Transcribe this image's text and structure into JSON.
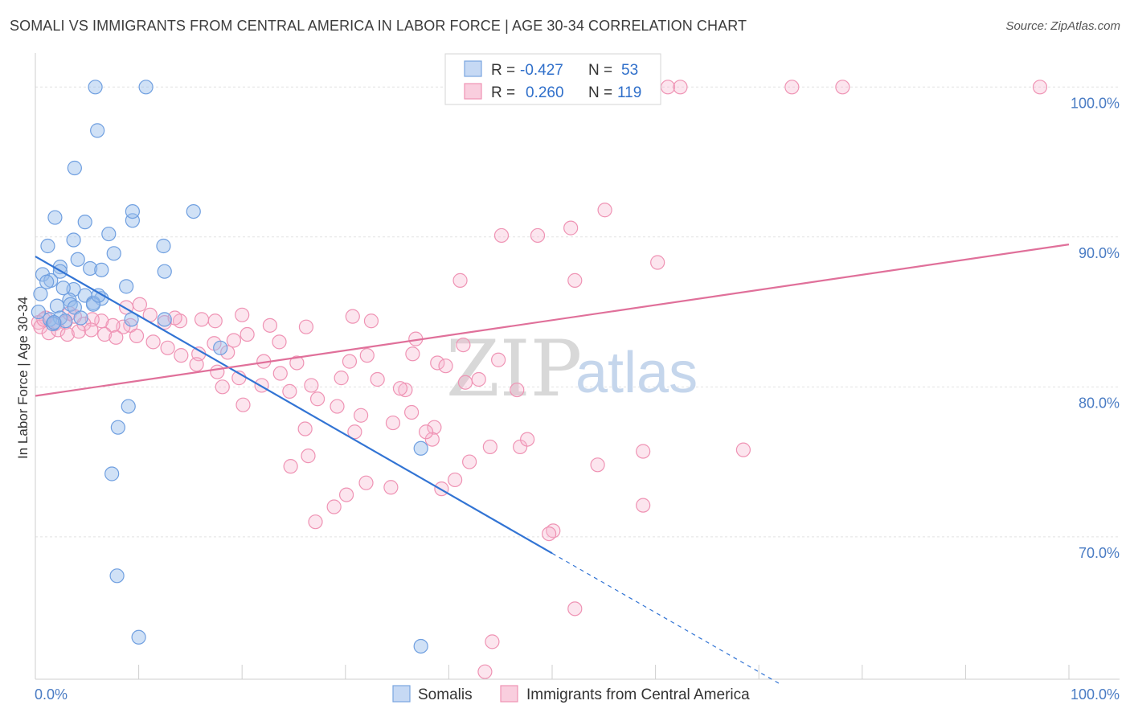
{
  "title": "SOMALI VS IMMIGRANTS FROM CENTRAL AMERICA IN LABOR FORCE | AGE 30-34 CORRELATION CHART",
  "source": "Source: ZipAtlas.com",
  "watermark": {
    "zip": "ZIP",
    "atlas": "atlas"
  },
  "colors": {
    "blue": "#6f9fe0",
    "blue_line": "#3274d4",
    "pink": "#ef8fb0",
    "pink_line": "#e0709a",
    "axis_text": "#4a7cc4"
  },
  "legend": {
    "r_label": "R =",
    "n_label": "N =",
    "rows": [
      {
        "r": "-0.427",
        "n": "53",
        "color": "blue"
      },
      {
        "r": "0.260",
        "n": "119",
        "color": "pink"
      }
    ]
  },
  "bottom_legend": [
    "Somalis",
    "Immigrants from Central America"
  ],
  "chart_data": {
    "type": "scatter",
    "title": "SOMALI VS IMMIGRANTS FROM CENTRAL AMERICA IN LABOR FORCE | AGE 30-34 CORRELATION CHART",
    "xlabel": "",
    "ylabel": "In Labor Force | Age 30-34",
    "xlim": [
      0,
      100
    ],
    "ylim": [
      60.5,
      102
    ],
    "x_tick_labels": [
      "0.0%",
      "100.0%"
    ],
    "y_ticks": [
      70,
      80,
      90,
      100
    ],
    "y_tick_labels": [
      "70.0%",
      "80.0%",
      "90.0%",
      "100.0%"
    ],
    "grid": true,
    "legend_position": "top-center",
    "series": [
      {
        "name": "Somalis",
        "color": "blue",
        "r": -0.427,
        "n": 53,
        "trend": {
          "x0": 0,
          "y0": 88.7,
          "x1": 50,
          "y1": 68.9,
          "dashed_to_x": 72,
          "dashed_to_y": 60.2
        },
        "points": [
          [
            5.8,
            100
          ],
          [
            10.7,
            100
          ],
          [
            6.0,
            97.1
          ],
          [
            3.8,
            94.6
          ],
          [
            1.9,
            91.3
          ],
          [
            4.8,
            91.0
          ],
          [
            9.4,
            91.1
          ],
          [
            9.4,
            91.7
          ],
          [
            15.3,
            91.7
          ],
          [
            7.1,
            90.2
          ],
          [
            3.7,
            89.8
          ],
          [
            1.2,
            89.4
          ],
          [
            12.4,
            89.4
          ],
          [
            7.6,
            88.9
          ],
          [
            4.1,
            88.5
          ],
          [
            2.4,
            88.0
          ],
          [
            5.3,
            87.9
          ],
          [
            6.4,
            87.8
          ],
          [
            2.4,
            87.7
          ],
          [
            12.5,
            87.7
          ],
          [
            0.7,
            87.5
          ],
          [
            1.5,
            87.1
          ],
          [
            1.1,
            87.0
          ],
          [
            8.8,
            86.7
          ],
          [
            3.7,
            86.5
          ],
          [
            0.5,
            86.2
          ],
          [
            4.8,
            86.1
          ],
          [
            6.4,
            85.9
          ],
          [
            3.3,
            85.8
          ],
          [
            5.6,
            85.6
          ],
          [
            2.1,
            85.4
          ],
          [
            3.4,
            85.5
          ],
          [
            3.8,
            85.3
          ],
          [
            5.6,
            85.5
          ],
          [
            1.4,
            84.5
          ],
          [
            2.4,
            84.6
          ],
          [
            9.3,
            84.5
          ],
          [
            12.5,
            84.5
          ],
          [
            1.7,
            84.2
          ],
          [
            17.9,
            82.6
          ],
          [
            9.0,
            78.7
          ],
          [
            8.0,
            77.3
          ],
          [
            7.4,
            74.2
          ],
          [
            37.3,
            75.9
          ],
          [
            7.9,
            67.4
          ],
          [
            10.0,
            63.3
          ],
          [
            37.3,
            62.7
          ],
          [
            2.9,
            84.4
          ],
          [
            1.8,
            84.3
          ],
          [
            4.4,
            84.6
          ],
          [
            6.1,
            86.1
          ],
          [
            0.3,
            85.0
          ],
          [
            2.7,
            86.6
          ]
        ]
      },
      {
        "name": "Immigrants from Central America",
        "color": "pink",
        "r": 0.26,
        "n": 119,
        "trend": {
          "x0": 0,
          "y0": 79.4,
          "x1": 100,
          "y1": 89.5
        },
        "points": [
          [
            47.0,
            100
          ],
          [
            48.9,
            100
          ],
          [
            53.7,
            100
          ],
          [
            55.3,
            100
          ],
          [
            59.5,
            100
          ],
          [
            61.2,
            100
          ],
          [
            62.4,
            100
          ],
          [
            73.2,
            100
          ],
          [
            78.1,
            100
          ],
          [
            97.2,
            100
          ],
          [
            55.1,
            91.8
          ],
          [
            51.8,
            90.6
          ],
          [
            48.6,
            90.1
          ],
          [
            45.1,
            90.1
          ],
          [
            60.2,
            88.3
          ],
          [
            41.1,
            87.1
          ],
          [
            52.2,
            87.1
          ],
          [
            68.5,
            75.8
          ],
          [
            58.8,
            75.7
          ],
          [
            54.4,
            74.8
          ],
          [
            58.8,
            72.1
          ],
          [
            50.1,
            70.4
          ],
          [
            49.7,
            70.2
          ],
          [
            52.2,
            65.2
          ],
          [
            44.2,
            63.0
          ],
          [
            43.5,
            61.0
          ],
          [
            35.8,
            79.8
          ],
          [
            36.4,
            78.3
          ],
          [
            38.6,
            77.3
          ],
          [
            30.9,
            77.0
          ],
          [
            32.0,
            73.6
          ],
          [
            38.4,
            76.5
          ],
          [
            44.0,
            76.0
          ],
          [
            46.9,
            76.0
          ],
          [
            47.6,
            76.5
          ],
          [
            42.0,
            75.0
          ],
          [
            40.6,
            73.8
          ],
          [
            39.3,
            73.2
          ],
          [
            34.4,
            73.3
          ],
          [
            30.1,
            72.8
          ],
          [
            28.9,
            72.0
          ],
          [
            27.1,
            71.0
          ],
          [
            24.7,
            74.7
          ],
          [
            26.4,
            75.4
          ],
          [
            26.1,
            77.2
          ],
          [
            20.1,
            78.8
          ],
          [
            18.1,
            80.0
          ],
          [
            15.8,
            82.2
          ],
          [
            18.6,
            82.3
          ],
          [
            23.6,
            83.0
          ],
          [
            22.1,
            81.7
          ],
          [
            25.3,
            81.6
          ],
          [
            23.7,
            80.9
          ],
          [
            26.7,
            80.1
          ],
          [
            29.6,
            80.6
          ],
          [
            33.1,
            80.5
          ],
          [
            35.3,
            79.9
          ],
          [
            38.9,
            81.6
          ],
          [
            41.6,
            80.3
          ],
          [
            42.9,
            80.5
          ],
          [
            44.8,
            81.8
          ],
          [
            46.6,
            79.8
          ],
          [
            32.1,
            82.1
          ],
          [
            30.4,
            81.7
          ],
          [
            36.5,
            82.2
          ],
          [
            39.7,
            81.4
          ],
          [
            41.4,
            82.8
          ],
          [
            36.8,
            83.2
          ],
          [
            32.5,
            84.4
          ],
          [
            30.7,
            84.7
          ],
          [
            26.2,
            84.0
          ],
          [
            22.7,
            84.1
          ],
          [
            20.5,
            83.5
          ],
          [
            19.2,
            83.1
          ],
          [
            17.3,
            82.9
          ],
          [
            16.1,
            84.5
          ],
          [
            14.0,
            84.4
          ],
          [
            12.5,
            84.3
          ],
          [
            11.1,
            84.8
          ],
          [
            10.1,
            85.5
          ],
          [
            9.2,
            84.1
          ],
          [
            8.5,
            84.0
          ],
          [
            7.5,
            84.1
          ],
          [
            6.4,
            84.4
          ],
          [
            5.5,
            84.5
          ],
          [
            4.7,
            84.2
          ],
          [
            3.8,
            84.7
          ],
          [
            2.9,
            84.3
          ],
          [
            1.9,
            84.2
          ],
          [
            1.0,
            84.6
          ],
          [
            0.3,
            84.3
          ],
          [
            0.5,
            84.0
          ],
          [
            1.3,
            83.6
          ],
          [
            2.2,
            83.8
          ],
          [
            3.1,
            83.5
          ],
          [
            4.2,
            83.7
          ],
          [
            5.4,
            83.8
          ],
          [
            6.7,
            83.5
          ],
          [
            7.8,
            83.3
          ],
          [
            9.8,
            83.4
          ],
          [
            11.4,
            83.0
          ],
          [
            12.8,
            82.6
          ],
          [
            14.1,
            82.1
          ],
          [
            15.6,
            81.5
          ],
          [
            17.6,
            81.0
          ],
          [
            19.7,
            80.6
          ],
          [
            21.9,
            80.1
          ],
          [
            24.6,
            79.7
          ],
          [
            27.3,
            79.2
          ],
          [
            29.2,
            78.7
          ],
          [
            31.5,
            78.1
          ],
          [
            34.6,
            77.6
          ],
          [
            37.8,
            77.0
          ],
          [
            20.0,
            84.8
          ],
          [
            17.4,
            84.4
          ],
          [
            13.5,
            84.6
          ],
          [
            8.8,
            85.3
          ],
          [
            3.3,
            84.9
          ],
          [
            0.8,
            84.5
          ]
        ]
      }
    ]
  }
}
